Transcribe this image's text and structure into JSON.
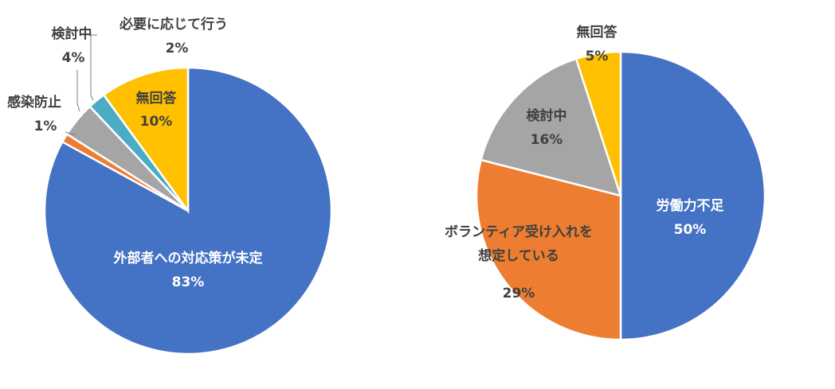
{
  "chart_data": [
    {
      "type": "pie",
      "title": "",
      "slices": [
        {
          "label": "外部者への対応策が未定",
          "value": 83,
          "value_text": "83%",
          "color": "#4472C4"
        },
        {
          "label": "感染防止",
          "value": 1,
          "value_text": "1%",
          "color": "#ED7D31"
        },
        {
          "label": "検討中",
          "value": 4,
          "value_text": "4%",
          "color": "#A5A5A5"
        },
        {
          "label": "必要に応じて行う",
          "value": 2,
          "value_text": "2%",
          "color": "#4BACC6"
        },
        {
          "label": "無回答",
          "value": 10,
          "value_text": "10%",
          "color": "#FFC000"
        }
      ]
    },
    {
      "type": "pie",
      "title": "",
      "slices": [
        {
          "label": "労働力不足",
          "value": 50,
          "value_text": "50%",
          "color": "#4472C4"
        },
        {
          "label": "ボランティア受け入れを想定している",
          "label_lines": [
            "ボランティア受け入れを",
            "想定している"
          ],
          "value": 29,
          "value_text": "29%",
          "color": "#ED7D31"
        },
        {
          "label": "検討中",
          "value": 16,
          "value_text": "16%",
          "color": "#A5A5A5"
        },
        {
          "label": "無回答",
          "value": 5,
          "value_text": "5%",
          "color": "#FFC000"
        }
      ]
    }
  ]
}
